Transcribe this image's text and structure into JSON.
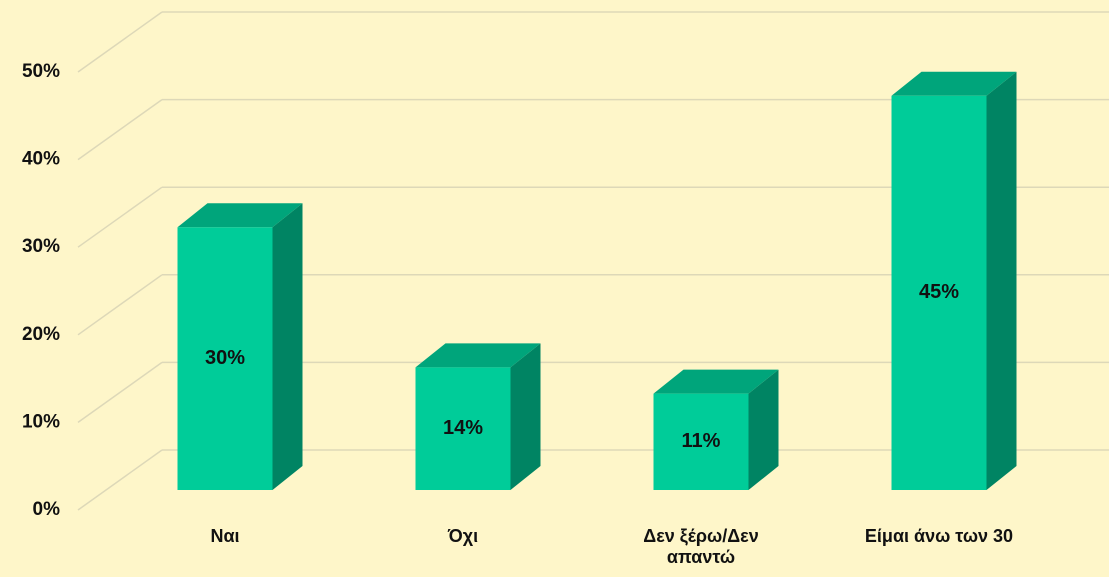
{
  "chart_data": {
    "type": "bar3d",
    "categories": [
      "Ναι",
      "Όχι",
      "Δεν ξέρω/Δεν απαντώ",
      "Είμαι άνω των 30"
    ],
    "values": [
      30,
      14,
      11,
      45
    ],
    "value_labels": [
      "30%",
      "14%",
      "11%",
      "45%"
    ],
    "colors": {
      "front": "#00cc99",
      "side": "#008463",
      "top": "#00a57b"
    },
    "ylim": [
      0,
      50
    ],
    "yticks": [
      {
        "value": 0,
        "label": "0%"
      },
      {
        "value": 10,
        "label": "10%"
      },
      {
        "value": 20,
        "label": "20%"
      },
      {
        "value": 30,
        "label": "30%"
      },
      {
        "value": 40,
        "label": "40%"
      },
      {
        "value": 50,
        "label": "50%"
      }
    ],
    "grid": true
  }
}
